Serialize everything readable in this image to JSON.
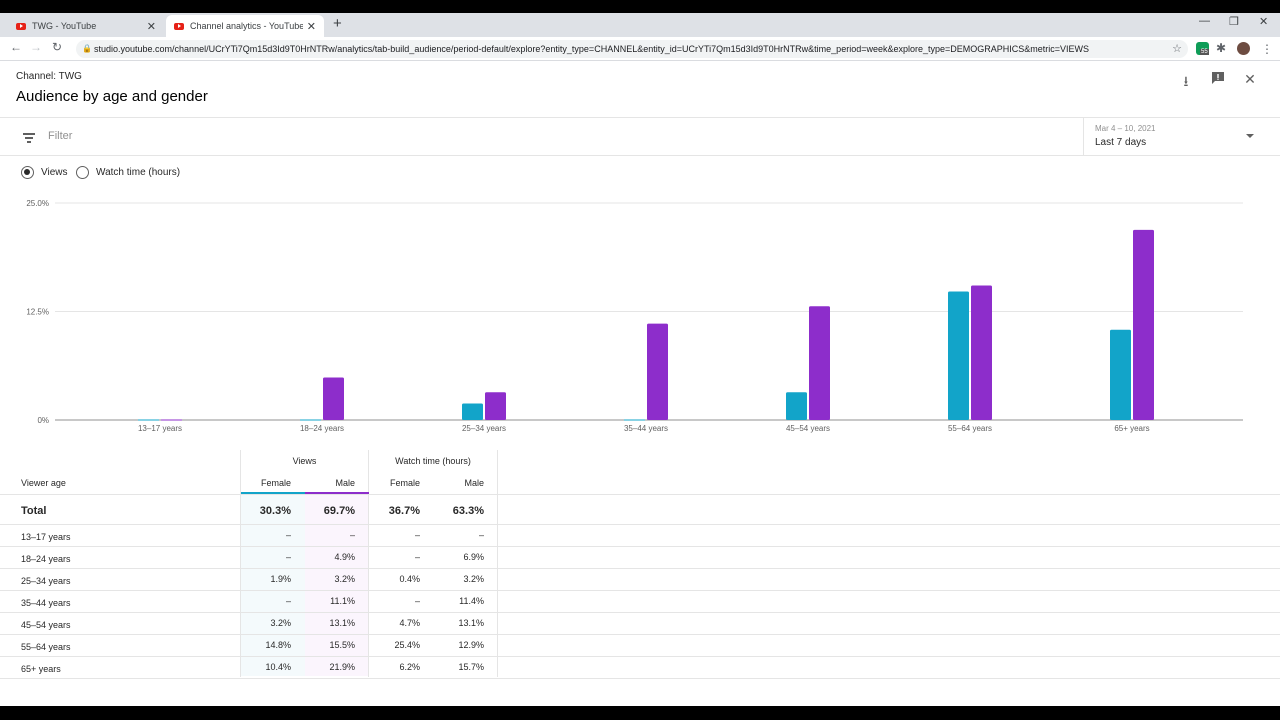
{
  "browser": {
    "tabs": [
      {
        "label": "TWG - YouTube",
        "active": false
      },
      {
        "label": "Channel analytics - YouTube Studio",
        "active": true
      }
    ],
    "url": "studio.youtube.com/channel/UCrYTi7Qm15d3Id9T0HrNTRw/analytics/tab-build_audience/period-default/explore?entity_type=CHANNEL&entity_id=UCrYTi7Qm15d3Id9T0HrNTRw&time_period=week&explore_type=DEMOGRAPHICS&metric=VIEWS",
    "ext_badge": "55"
  },
  "header": {
    "channel": "Channel: TWG",
    "title": "Audience by age and gender"
  },
  "filter": {
    "placeholder": "Filter",
    "period_range": "Mar 4 – 10, 2021",
    "period_label": "Last 7 days"
  },
  "metric_toggle": {
    "options": [
      "Views",
      "Watch time (hours)"
    ],
    "selected": "Views"
  },
  "colors": {
    "female": "#12a4c9",
    "male": "#8d2dcb",
    "grid": "#e5e5e5",
    "text": "#606060"
  },
  "chart_data": {
    "type": "bar",
    "categories": [
      "13–17 years",
      "18–24 years",
      "25–34 years",
      "35–44 years",
      "45–54 years",
      "55–64 years",
      "65+ years"
    ],
    "series": [
      {
        "name": "Female",
        "values": [
          0,
          0,
          1.9,
          0,
          3.2,
          14.8,
          10.4
        ]
      },
      {
        "name": "Male",
        "values": [
          0,
          4.9,
          3.2,
          11.1,
          13.1,
          15.5,
          21.9
        ]
      }
    ],
    "ytick_labels": [
      "0%",
      "12.5%",
      "25.0%"
    ],
    "ylim": [
      0,
      25
    ]
  },
  "table": {
    "row_header": "Viewer age",
    "groups": [
      "Views",
      "Watch time (hours)"
    ],
    "subcols": [
      "Female",
      "Male",
      "Female",
      "Male"
    ],
    "total": {
      "label": "Total",
      "values": [
        "30.3%",
        "69.7%",
        "36.7%",
        "63.3%"
      ]
    },
    "rows": [
      {
        "label": "13–17 years",
        "values": [
          "–",
          "–",
          "–",
          "–"
        ]
      },
      {
        "label": "18–24 years",
        "values": [
          "–",
          "4.9%",
          "–",
          "6.9%"
        ]
      },
      {
        "label": "25–34 years",
        "values": [
          "1.9%",
          "3.2%",
          "0.4%",
          "3.2%"
        ]
      },
      {
        "label": "35–44 years",
        "values": [
          "–",
          "11.1%",
          "–",
          "11.4%"
        ]
      },
      {
        "label": "45–54 years",
        "values": [
          "3.2%",
          "13.1%",
          "4.7%",
          "13.1%"
        ]
      },
      {
        "label": "55–64 years",
        "values": [
          "14.8%",
          "15.5%",
          "25.4%",
          "12.9%"
        ]
      },
      {
        "label": "65+ years",
        "values": [
          "10.4%",
          "21.9%",
          "6.2%",
          "15.7%"
        ]
      }
    ]
  }
}
